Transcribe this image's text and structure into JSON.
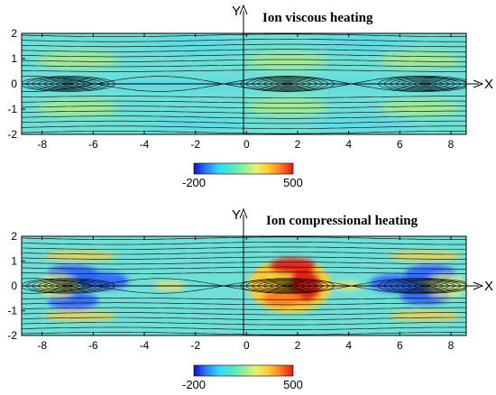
{
  "chart_data": [
    {
      "type": "heatmap",
      "title": "Ion viscous heating",
      "xlabel": "X",
      "ylabel": "Y",
      "xlim": [
        -8.8,
        8.6
      ],
      "ylim": [
        -2,
        2
      ],
      "x_ticks": [
        "-8",
        "-6",
        "-4",
        "-2",
        "0",
        "2",
        "4",
        "6",
        "8"
      ],
      "x_tick_values": [
        -8,
        -6,
        -4,
        -2,
        0,
        2,
        4,
        6,
        8
      ],
      "y_ticks": [
        "2",
        "1",
        "0",
        "-1",
        "-2"
      ],
      "y_tick_values": [
        2,
        1,
        0,
        -1,
        -2
      ],
      "colorbar": {
        "min_label": "-200",
        "max_label": "500",
        "min": -200,
        "max": 500,
        "colors": [
          "#1010c8",
          "#2a7cff",
          "#34d8ff",
          "#4ce8c8",
          "#8cf0a0",
          "#e8f070",
          "#ffcc30",
          "#ff7a20",
          "#e01818"
        ]
      },
      "field_description": "mostly low positive values (cyan) with warmer bands along the separatrices",
      "islands": [
        {
          "x_center": 1.6,
          "type": "O-point"
        },
        {
          "x_center": -7.0,
          "type": "O-point"
        },
        {
          "x_center": 7.0,
          "type": "O-point"
        }
      ],
      "x_points": [
        -3.0,
        3.9
      ],
      "contour_lines": "magnetic flux surfaces (black)"
    },
    {
      "type": "heatmap",
      "title": "Ion compressional heating",
      "xlabel": "X",
      "ylabel": "Y",
      "xlim": [
        -8.8,
        8.6
      ],
      "ylim": [
        -2,
        2
      ],
      "x_ticks": [
        "-8",
        "-6",
        "-4",
        "-2",
        "0",
        "2",
        "4",
        "6",
        "8"
      ],
      "x_tick_values": [
        -8,
        -6,
        -4,
        -2,
        0,
        2,
        4,
        6,
        8
      ],
      "y_ticks": [
        "2",
        "1",
        "0",
        "-1",
        "-2"
      ],
      "y_tick_values": [
        2,
        1,
        0,
        -1,
        -2
      ],
      "colorbar": {
        "min_label": "-200",
        "max_label": "500",
        "min": -200,
        "max": 500,
        "colors": [
          "#1010c8",
          "#2a7cff",
          "#34d8ff",
          "#4ce8c8",
          "#8cf0a0",
          "#e8f070",
          "#ffcc30",
          "#ff7a20",
          "#e01818"
        ]
      },
      "field_description": "strong positive heating (red) around the island at x≈2, negative (blue) in the islands near x≈-7 and x≈7",
      "islands": [
        {
          "x_center": 1.6,
          "type": "O-point"
        },
        {
          "x_center": -7.0,
          "type": "O-point"
        },
        {
          "x_center": 7.0,
          "type": "O-point"
        }
      ],
      "x_points": [
        -3.0,
        3.9
      ],
      "hot_spots": [
        {
          "x": 2.3,
          "y": 0.0,
          "value_range": "high positive"
        },
        {
          "x": 1.8,
          "y": 0.8,
          "value_range": "high positive"
        }
      ],
      "cold_spots": [
        {
          "x": -6.8,
          "y": 0.5
        },
        {
          "x": -6.8,
          "y": -0.6
        },
        {
          "x": 7.2,
          "y": 0.5
        },
        {
          "x": 7.0,
          "y": -0.4
        }
      ],
      "contour_lines": "magnetic flux surfaces (black)"
    }
  ]
}
